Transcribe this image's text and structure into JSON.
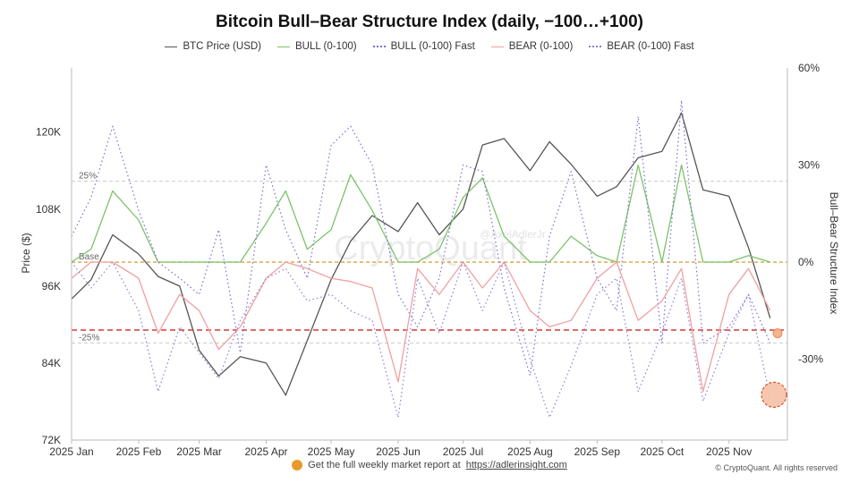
{
  "chart_data": {
    "type": "line",
    "title": "Bitcoin Bull–Bear Structure Index (daily, −100…+100)",
    "ylabel": "Price ($)",
    "y2label": "Bull–Bear Structure Index",
    "ylim": [
      72000,
      130000
    ],
    "y2lim": [
      -55,
      60
    ],
    "x_ticks": [
      "2025 Jan",
      "2025 Feb",
      "2025 Mar",
      "2025 Apr",
      "2025 May",
      "2025 Jun",
      "2025 Jul",
      "2025 Aug",
      "2025 Sep",
      "2025 Oct",
      "2025 Nov"
    ],
    "y_ticks": [
      "72K",
      "84K",
      "96K",
      "108K",
      "120K"
    ],
    "y2_ticks": [
      "-30%",
      "0%",
      "30%",
      "60%"
    ],
    "ref_lines": [
      {
        "label": "25%",
        "value": 25
      },
      {
        "label": "Base",
        "value": 0
      },
      {
        "label": "-25%",
        "value": -25
      }
    ],
    "watermark": "CryptoQuant",
    "watermark_handle": "@AxelAdlerJr",
    "x_dates": [
      "2025-01-01",
      "2025-01-10",
      "2025-01-20",
      "2025-02-01",
      "2025-02-10",
      "2025-02-20",
      "2025-03-01",
      "2025-03-10",
      "2025-03-20",
      "2025-04-01",
      "2025-04-10",
      "2025-04-20",
      "2025-05-01",
      "2025-05-10",
      "2025-05-20",
      "2025-06-01",
      "2025-06-10",
      "2025-06-20",
      "2025-07-01",
      "2025-07-10",
      "2025-07-20",
      "2025-08-01",
      "2025-08-10",
      "2025-08-20",
      "2025-09-01",
      "2025-09-10",
      "2025-09-20",
      "2025-10-01",
      "2025-10-10",
      "2025-10-20",
      "2025-11-01",
      "2025-11-10",
      "2025-11-20"
    ],
    "series": [
      {
        "name": "BTC Price (USD)",
        "color": "#555555",
        "style": "solid",
        "axis": "left",
        "values": [
          94000,
          97000,
          104000,
          101000,
          97500,
          96000,
          86000,
          82000,
          85000,
          84000,
          79000,
          87500,
          97000,
          103000,
          107000,
          104500,
          109000,
          104000,
          108000,
          118000,
          119000,
          114000,
          118500,
          115000,
          110000,
          111500,
          116000,
          117000,
          123000,
          111000,
          110000,
          102000,
          91000
        ]
      },
      {
        "name": "BULL (0-100)",
        "color": "#7cc36b",
        "style": "solid",
        "axis": "right",
        "values": [
          0,
          4,
          22,
          13,
          0,
          0,
          0,
          0,
          0,
          12,
          22,
          4,
          10,
          27,
          16,
          0,
          0,
          4,
          20,
          26,
          8,
          0,
          0,
          8,
          2,
          0,
          30,
          0,
          30,
          0,
          0,
          2,
          0
        ]
      },
      {
        "name": "BULL (0-100) Fast",
        "color": "#7a6ed1",
        "style": "dotted",
        "axis": "right",
        "values": [
          8,
          20,
          42,
          16,
          0,
          -5,
          -10,
          10,
          -28,
          30,
          10,
          -5,
          36,
          42,
          30,
          -10,
          -20,
          -5,
          30,
          28,
          -8,
          -35,
          8,
          28,
          -5,
          -15,
          45,
          -25,
          50,
          -25,
          -20,
          -10,
          -25
        ]
      },
      {
        "name": "BEAR (0-100)",
        "color": "#f0a0a0",
        "style": "solid",
        "axis": "right",
        "values": [
          -5,
          0,
          0,
          -5,
          -22,
          -10,
          -15,
          -27,
          -20,
          -5,
          0,
          -2,
          -5,
          -6,
          -8,
          -37,
          -2,
          -10,
          0,
          -8,
          0,
          -15,
          -20,
          -18,
          -5,
          0,
          -18,
          -12,
          -2,
          -40,
          -10,
          -2,
          -15
        ]
      },
      {
        "name": "BEAR (0-100) Fast",
        "color": "#8c7fd6",
        "style": "dotted",
        "axis": "right",
        "values": [
          0,
          -8,
          0,
          -15,
          -40,
          -20,
          -28,
          -36,
          -18,
          -5,
          -2,
          -12,
          -10,
          -15,
          -18,
          -48,
          -5,
          -22,
          0,
          -15,
          0,
          -30,
          -48,
          -32,
          -10,
          -5,
          -40,
          -22,
          -5,
          -43,
          -22,
          -10,
          -42
        ]
      }
    ]
  },
  "footer": {
    "text": "Get the full weekly market report at",
    "link": "https://adlerinsight.com"
  },
  "copyright": "© CryptoQuant. All rights reserved",
  "colors": {
    "base_line": "#d9a441",
    "support_line": "#d63a3a",
    "grid": "#e6e6e6"
  }
}
